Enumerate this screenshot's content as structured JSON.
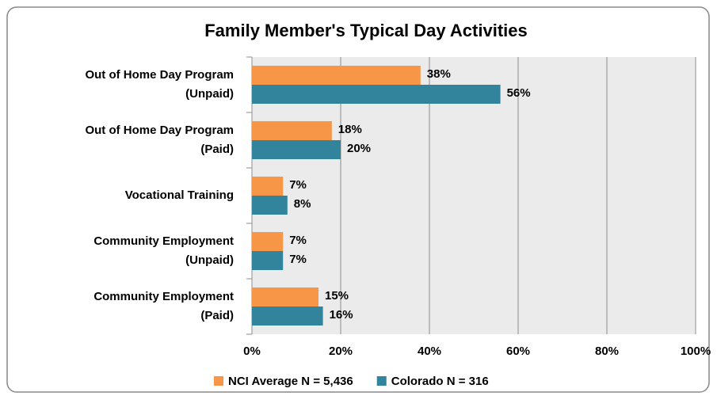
{
  "chart_data": {
    "type": "bar",
    "orientation": "horizontal",
    "title": "Family Member's Typical Day Activities",
    "categories": [
      [
        "Out of Home Day Program",
        "(Unpaid)"
      ],
      [
        "Out of Home Day Program",
        "(Paid)"
      ],
      [
        "Vocational Training"
      ],
      [
        "Community Employment",
        "(Unpaid)"
      ],
      [
        "Community Employment",
        "(Paid)"
      ]
    ],
    "series": [
      {
        "name": "NCI Average N = 5,436",
        "color": "#f79646",
        "values": [
          38,
          18,
          7,
          7,
          15
        ],
        "value_labels": [
          "38%",
          "18%",
          "7%",
          "7%",
          "15%"
        ]
      },
      {
        "name": "Colorado N = 316",
        "color": "#31849b",
        "values": [
          56,
          20,
          8,
          7,
          16
        ],
        "value_labels": [
          "56%",
          "20%",
          "8%",
          "7%",
          "16%"
        ]
      }
    ],
    "xlim": [
      0,
      100
    ],
    "xticks": [
      {
        "value": 0,
        "label": "0%"
      },
      {
        "value": 20,
        "label": "20%"
      },
      {
        "value": 40,
        "label": "40%"
      },
      {
        "value": 60,
        "label": "60%"
      },
      {
        "value": 80,
        "label": "80%"
      },
      {
        "value": 100,
        "label": "100%"
      }
    ],
    "grid": true,
    "legend": "bottom"
  }
}
